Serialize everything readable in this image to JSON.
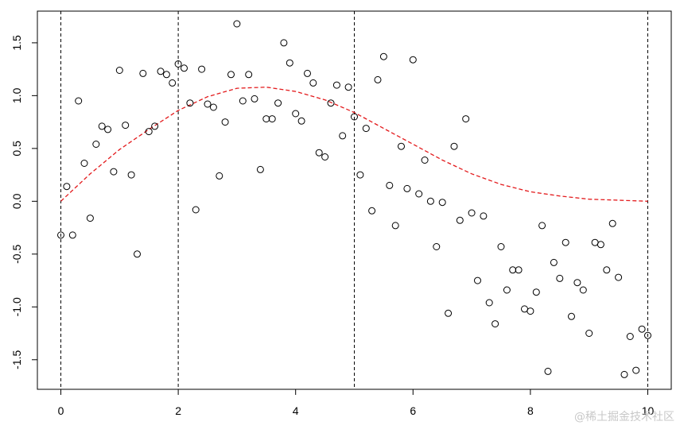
{
  "watermark": "@稀土掘金技术社区",
  "chart_data": {
    "type": "scatter",
    "title": "",
    "xlabel": "",
    "ylabel": "",
    "xlim": [
      -0.4,
      10.4
    ],
    "ylim": [
      -1.78,
      1.8
    ],
    "x_ticks": [
      0,
      2,
      4,
      6,
      8,
      10
    ],
    "x_tick_labels": [
      "0",
      "2",
      "4",
      "6",
      "8",
      "10"
    ],
    "y_ticks": [
      -1.5,
      -1.0,
      -0.5,
      0.0,
      0.5,
      1.0,
      1.5
    ],
    "y_tick_labels": [
      "-1.5",
      "-1.0",
      "-0.5",
      "0.0",
      "0.5",
      "1.0",
      "1.5"
    ],
    "grid": false,
    "legend": "none",
    "vertical_reference_lines": {
      "x": [
        0,
        2,
        5,
        10
      ],
      "style": "dashed",
      "color": "#000000"
    },
    "series": [
      {
        "kind": "points",
        "marker": "open-circle",
        "color": "#000000",
        "x": [
          0.0,
          0.1,
          0.2,
          0.3,
          0.4,
          0.5,
          0.6,
          0.7,
          0.8,
          0.9,
          1.0,
          1.1,
          1.2,
          1.3,
          1.4,
          1.5,
          1.6,
          1.7,
          1.8,
          1.9,
          2.0,
          2.1,
          2.2,
          2.3,
          2.4,
          2.5,
          2.6,
          2.7,
          2.8,
          2.9,
          3.0,
          3.1,
          3.2,
          3.3,
          3.4,
          3.5,
          3.6,
          3.7,
          3.8,
          3.9,
          4.0,
          4.1,
          4.2,
          4.3,
          4.4,
          4.5,
          4.6,
          4.7,
          4.8,
          4.9,
          5.0,
          5.1,
          5.2,
          5.3,
          5.4,
          5.5,
          5.6,
          5.7,
          5.8,
          5.9,
          6.0,
          6.1,
          6.2,
          6.3,
          6.4,
          6.5,
          6.6,
          6.7,
          6.8,
          6.9,
          7.0,
          7.1,
          7.2,
          7.3,
          7.4,
          7.5,
          7.6,
          7.7,
          7.8,
          7.9,
          8.0,
          8.1,
          8.2,
          8.3,
          8.4,
          8.5,
          8.6,
          8.7,
          8.8,
          8.9,
          9.0,
          9.1,
          9.2,
          9.3,
          9.4,
          9.5,
          9.6,
          9.7,
          9.8,
          9.9,
          10.0
        ],
        "y": [
          -0.32,
          0.14,
          -0.32,
          0.95,
          0.36,
          -0.16,
          0.54,
          0.71,
          0.68,
          0.28,
          1.24,
          0.72,
          0.25,
          -0.5,
          1.21,
          0.66,
          0.71,
          1.23,
          1.2,
          1.12,
          1.3,
          1.26,
          0.93,
          -0.08,
          1.25,
          0.92,
          0.89,
          0.24,
          0.75,
          1.2,
          1.68,
          0.95,
          1.2,
          0.97,
          0.3,
          0.78,
          0.78,
          0.93,
          1.5,
          1.31,
          0.83,
          0.76,
          1.21,
          1.12,
          0.46,
          0.42,
          0.93,
          1.1,
          0.62,
          1.08,
          0.8,
          0.25,
          0.69,
          -0.09,
          1.15,
          1.37,
          0.15,
          -0.23,
          0.52,
          0.12,
          1.34,
          0.07,
          0.39,
          0.0,
          -0.43,
          -0.01,
          -1.06,
          0.52,
          -0.18,
          0.78,
          -0.11,
          -0.75,
          -0.14,
          -0.96,
          -1.16,
          -0.43,
          -0.84,
          -0.65,
          -0.65,
          -1.02,
          -1.04,
          -0.86,
          -0.23,
          -1.61,
          -0.58,
          -0.73,
          -0.39,
          -1.09,
          -0.77,
          -0.84,
          -1.25,
          -0.39,
          -0.41,
          -0.65,
          -0.21,
          -0.72,
          -1.64,
          -1.28,
          -1.6,
          -1.21,
          -1.27
        ]
      },
      {
        "kind": "line",
        "style": "dashed",
        "color": "#e31a1c",
        "x": [
          0.0,
          0.5,
          1.0,
          1.5,
          2.0,
          2.5,
          3.0,
          3.5,
          4.0,
          4.5,
          5.0,
          5.5,
          6.0,
          6.5,
          7.0,
          7.5,
          8.0,
          8.5,
          9.0,
          9.5,
          10.0
        ],
        "y": [
          0.0,
          0.26,
          0.49,
          0.68,
          0.86,
          0.99,
          1.07,
          1.08,
          1.04,
          0.96,
          0.84,
          0.69,
          0.54,
          0.39,
          0.26,
          0.16,
          0.09,
          0.05,
          0.02,
          0.01,
          0.0
        ]
      }
    ]
  }
}
